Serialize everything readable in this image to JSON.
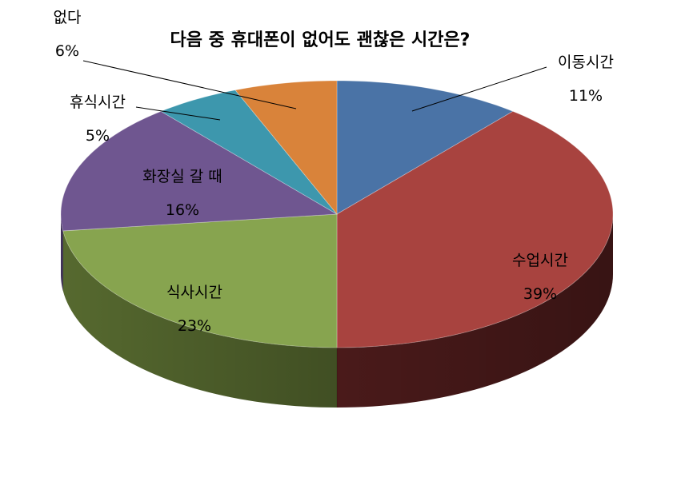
{
  "chart_data": {
    "type": "pie",
    "title": "다음 중 휴대폰이 없어도 괜찮은 시간은?",
    "labels": [
      "이동시간",
      "수업시간",
      "식사시간",
      "화장실 갈 때",
      "휴식시간",
      "없다"
    ],
    "values": [
      11,
      39,
      23,
      16,
      5,
      6
    ],
    "value_labels": [
      "11%",
      "39%",
      "23%",
      "16%",
      "5%",
      "6%"
    ],
    "colors": [
      "#4a73a6",
      "#a8433f",
      "#87a44f",
      "#6f5690",
      "#3d97ad",
      "#d9833a"
    ],
    "side_colors": [
      "#2f4d72",
      "#4a1a1a",
      "#56692f",
      "#463661",
      "#25697a",
      "#9a5a22"
    ],
    "style": "3d",
    "legend": "none"
  }
}
